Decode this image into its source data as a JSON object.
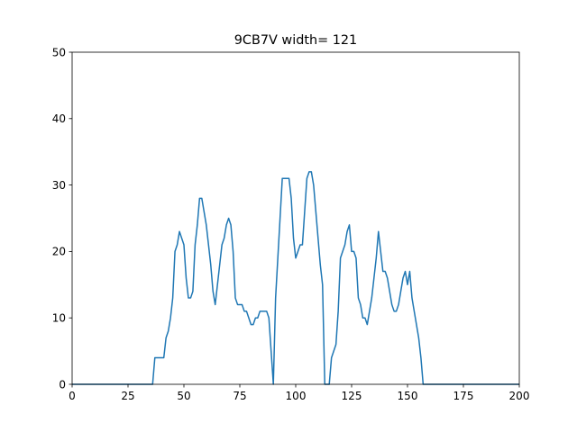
{
  "chart_data": {
    "type": "line",
    "title": "9CB7V width= 121",
    "xlabel": "",
    "ylabel": "",
    "xlim": [
      0,
      200
    ],
    "ylim": [
      0,
      50
    ],
    "xticks": [
      0,
      25,
      50,
      75,
      100,
      125,
      150,
      175,
      200
    ],
    "yticks": [
      0,
      10,
      20,
      30,
      40,
      50
    ],
    "grid": false,
    "line_color": "#1f77b4",
    "series": [
      {
        "x": [
          0,
          36,
          37,
          38,
          39,
          40,
          41,
          42,
          43,
          44,
          45,
          46,
          47,
          48,
          49,
          50,
          51,
          52,
          53,
          54,
          55,
          56,
          57,
          58,
          59,
          60,
          61,
          62,
          63,
          64,
          65,
          66,
          67,
          68,
          69,
          70,
          71,
          72,
          73,
          74,
          75,
          76,
          77,
          78,
          79,
          80,
          81,
          82,
          83,
          84,
          85,
          86,
          87,
          88,
          89,
          90,
          91,
          92,
          93,
          94,
          95,
          96,
          97,
          98,
          99,
          100,
          101,
          102,
          103,
          104,
          105,
          106,
          107,
          108,
          109,
          110,
          111,
          112,
          113,
          114,
          115,
          116,
          117,
          118,
          119,
          120,
          121,
          122,
          123,
          124,
          125,
          126,
          127,
          128,
          129,
          130,
          131,
          132,
          133,
          134,
          135,
          136,
          137,
          138,
          139,
          140,
          141,
          142,
          143,
          144,
          145,
          146,
          147,
          148,
          149,
          150,
          151,
          152,
          153,
          154,
          155,
          156,
          157,
          200
        ],
        "y": [
          0,
          0,
          4,
          4,
          4,
          4,
          4,
          7,
          8,
          10,
          13,
          20,
          21,
          23,
          22,
          21,
          16,
          13,
          13,
          14,
          21,
          24,
          28,
          28,
          26,
          24,
          21,
          18,
          14,
          12,
          15,
          18,
          21,
          22,
          24,
          25,
          24,
          20,
          13,
          12,
          12,
          12,
          11,
          11,
          10,
          9,
          9,
          10,
          10,
          11,
          11,
          11,
          11,
          10,
          5,
          0,
          13,
          19,
          25,
          31,
          31,
          31,
          31,
          28,
          22,
          19,
          20,
          21,
          21,
          26,
          31,
          32,
          32,
          30,
          26,
          22,
          18,
          15,
          0,
          0,
          0,
          4,
          5,
          6,
          11,
          19,
          20,
          21,
          23,
          24,
          20,
          20,
          19,
          13,
          12,
          10,
          10,
          9,
          11,
          13,
          16,
          19,
          23,
          20,
          17,
          17,
          16,
          14,
          12,
          11,
          11,
          12,
          14,
          16,
          17,
          15,
          17,
          13,
          11,
          9,
          7,
          4,
          0,
          0
        ]
      }
    ]
  }
}
